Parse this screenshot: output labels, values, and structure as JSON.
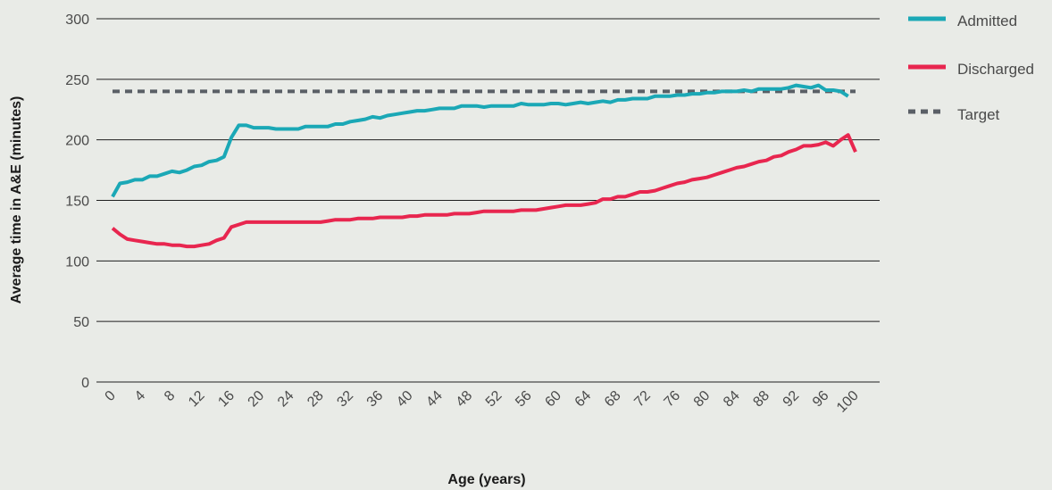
{
  "chart_data": {
    "type": "line",
    "title": "",
    "xlabel": "Age (years)",
    "ylabel": "Average time in A&E (minutes)",
    "xlim": [
      0,
      100
    ],
    "ylim": [
      0,
      300
    ],
    "y_ticks": [
      0,
      50,
      100,
      150,
      200,
      250,
      300
    ],
    "x_ticks": [
      0,
      4,
      8,
      12,
      16,
      20,
      24,
      28,
      32,
      36,
      40,
      44,
      48,
      52,
      56,
      60,
      64,
      68,
      72,
      76,
      80,
      84,
      88,
      92,
      96,
      100
    ],
    "grid": "horizontal",
    "legend_position": "top-right",
    "series": [
      {
        "name": "Admitted",
        "color": "#1ba8b6",
        "points": [
          [
            0,
            153
          ],
          [
            1,
            164
          ],
          [
            2,
            165
          ],
          [
            3,
            167
          ],
          [
            4,
            167
          ],
          [
            5,
            170
          ],
          [
            6,
            170
          ],
          [
            7,
            172
          ],
          [
            8,
            174
          ],
          [
            9,
            173
          ],
          [
            10,
            175
          ],
          [
            11,
            178
          ],
          [
            12,
            179
          ],
          [
            13,
            182
          ],
          [
            14,
            183
          ],
          [
            15,
            186
          ],
          [
            16,
            202
          ],
          [
            17,
            212
          ],
          [
            18,
            212
          ],
          [
            19,
            210
          ],
          [
            20,
            210
          ],
          [
            21,
            210
          ],
          [
            22,
            209
          ],
          [
            23,
            209
          ],
          [
            24,
            209
          ],
          [
            25,
            209
          ],
          [
            26,
            211
          ],
          [
            27,
            211
          ],
          [
            28,
            211
          ],
          [
            29,
            211
          ],
          [
            30,
            213
          ],
          [
            31,
            213
          ],
          [
            32,
            215
          ],
          [
            33,
            216
          ],
          [
            34,
            217
          ],
          [
            35,
            219
          ],
          [
            36,
            218
          ],
          [
            37,
            220
          ],
          [
            38,
            221
          ],
          [
            39,
            222
          ],
          [
            40,
            223
          ],
          [
            41,
            224
          ],
          [
            42,
            224
          ],
          [
            43,
            225
          ],
          [
            44,
            226
          ],
          [
            45,
            226
          ],
          [
            46,
            226
          ],
          [
            47,
            228
          ],
          [
            48,
            228
          ],
          [
            49,
            228
          ],
          [
            50,
            227
          ],
          [
            51,
            228
          ],
          [
            52,
            228
          ],
          [
            53,
            228
          ],
          [
            54,
            228
          ],
          [
            55,
            230
          ],
          [
            56,
            229
          ],
          [
            57,
            229
          ],
          [
            58,
            229
          ],
          [
            59,
            230
          ],
          [
            60,
            230
          ],
          [
            61,
            229
          ],
          [
            62,
            230
          ],
          [
            63,
            231
          ],
          [
            64,
            230
          ],
          [
            65,
            231
          ],
          [
            66,
            232
          ],
          [
            67,
            231
          ],
          [
            68,
            233
          ],
          [
            69,
            233
          ],
          [
            70,
            234
          ],
          [
            71,
            234
          ],
          [
            72,
            234
          ],
          [
            73,
            236
          ],
          [
            74,
            236
          ],
          [
            75,
            236
          ],
          [
            76,
            237
          ],
          [
            77,
            237
          ],
          [
            78,
            238
          ],
          [
            79,
            238
          ],
          [
            80,
            239
          ],
          [
            81,
            239
          ],
          [
            82,
            240
          ],
          [
            83,
            240
          ],
          [
            84,
            240
          ],
          [
            85,
            241
          ],
          [
            86,
            240
          ],
          [
            87,
            242
          ],
          [
            88,
            242
          ],
          [
            89,
            242
          ],
          [
            90,
            242
          ],
          [
            91,
            243
          ],
          [
            92,
            245
          ],
          [
            93,
            244
          ],
          [
            94,
            243
          ],
          [
            95,
            245
          ],
          [
            96,
            241
          ],
          [
            97,
            241
          ],
          [
            98,
            240
          ],
          [
            99,
            236
          ]
        ]
      },
      {
        "name": "Discharged",
        "color": "#e8264f",
        "points": [
          [
            0,
            127
          ],
          [
            1,
            122
          ],
          [
            2,
            118
          ],
          [
            3,
            117
          ],
          [
            4,
            116
          ],
          [
            5,
            115
          ],
          [
            6,
            114
          ],
          [
            7,
            114
          ],
          [
            8,
            113
          ],
          [
            9,
            113
          ],
          [
            10,
            112
          ],
          [
            11,
            112
          ],
          [
            12,
            113
          ],
          [
            13,
            114
          ],
          [
            14,
            117
          ],
          [
            15,
            119
          ],
          [
            16,
            128
          ],
          [
            17,
            130
          ],
          [
            18,
            132
          ],
          [
            19,
            132
          ],
          [
            20,
            132
          ],
          [
            21,
            132
          ],
          [
            22,
            132
          ],
          [
            23,
            132
          ],
          [
            24,
            132
          ],
          [
            25,
            132
          ],
          [
            26,
            132
          ],
          [
            27,
            132
          ],
          [
            28,
            132
          ],
          [
            29,
            133
          ],
          [
            30,
            134
          ],
          [
            31,
            134
          ],
          [
            32,
            134
          ],
          [
            33,
            135
          ],
          [
            34,
            135
          ],
          [
            35,
            135
          ],
          [
            36,
            136
          ],
          [
            37,
            136
          ],
          [
            38,
            136
          ],
          [
            39,
            136
          ],
          [
            40,
            137
          ],
          [
            41,
            137
          ],
          [
            42,
            138
          ],
          [
            43,
            138
          ],
          [
            44,
            138
          ],
          [
            45,
            138
          ],
          [
            46,
            139
          ],
          [
            47,
            139
          ],
          [
            48,
            139
          ],
          [
            49,
            140
          ],
          [
            50,
            141
          ],
          [
            51,
            141
          ],
          [
            52,
            141
          ],
          [
            53,
            141
          ],
          [
            54,
            141
          ],
          [
            55,
            142
          ],
          [
            56,
            142
          ],
          [
            57,
            142
          ],
          [
            58,
            143
          ],
          [
            59,
            144
          ],
          [
            60,
            145
          ],
          [
            61,
            146
          ],
          [
            62,
            146
          ],
          [
            63,
            146
          ],
          [
            64,
            147
          ],
          [
            65,
            148
          ],
          [
            66,
            151
          ],
          [
            67,
            151
          ],
          [
            68,
            153
          ],
          [
            69,
            153
          ],
          [
            70,
            155
          ],
          [
            71,
            157
          ],
          [
            72,
            157
          ],
          [
            73,
            158
          ],
          [
            74,
            160
          ],
          [
            75,
            162
          ],
          [
            76,
            164
          ],
          [
            77,
            165
          ],
          [
            78,
            167
          ],
          [
            79,
            168
          ],
          [
            80,
            169
          ],
          [
            81,
            171
          ],
          [
            82,
            173
          ],
          [
            83,
            175
          ],
          [
            84,
            177
          ],
          [
            85,
            178
          ],
          [
            86,
            180
          ],
          [
            87,
            182
          ],
          [
            88,
            183
          ],
          [
            89,
            186
          ],
          [
            90,
            187
          ],
          [
            91,
            190
          ],
          [
            92,
            192
          ],
          [
            93,
            195
          ],
          [
            94,
            195
          ],
          [
            95,
            196
          ],
          [
            96,
            198
          ],
          [
            97,
            195
          ],
          [
            98,
            200
          ],
          [
            99,
            204
          ],
          [
            100,
            190
          ]
        ]
      },
      {
        "name": "Target",
        "color": "#5a5f66",
        "dashed": true,
        "points": [
          [
            0,
            240
          ],
          [
            100,
            240
          ]
        ]
      }
    ]
  }
}
